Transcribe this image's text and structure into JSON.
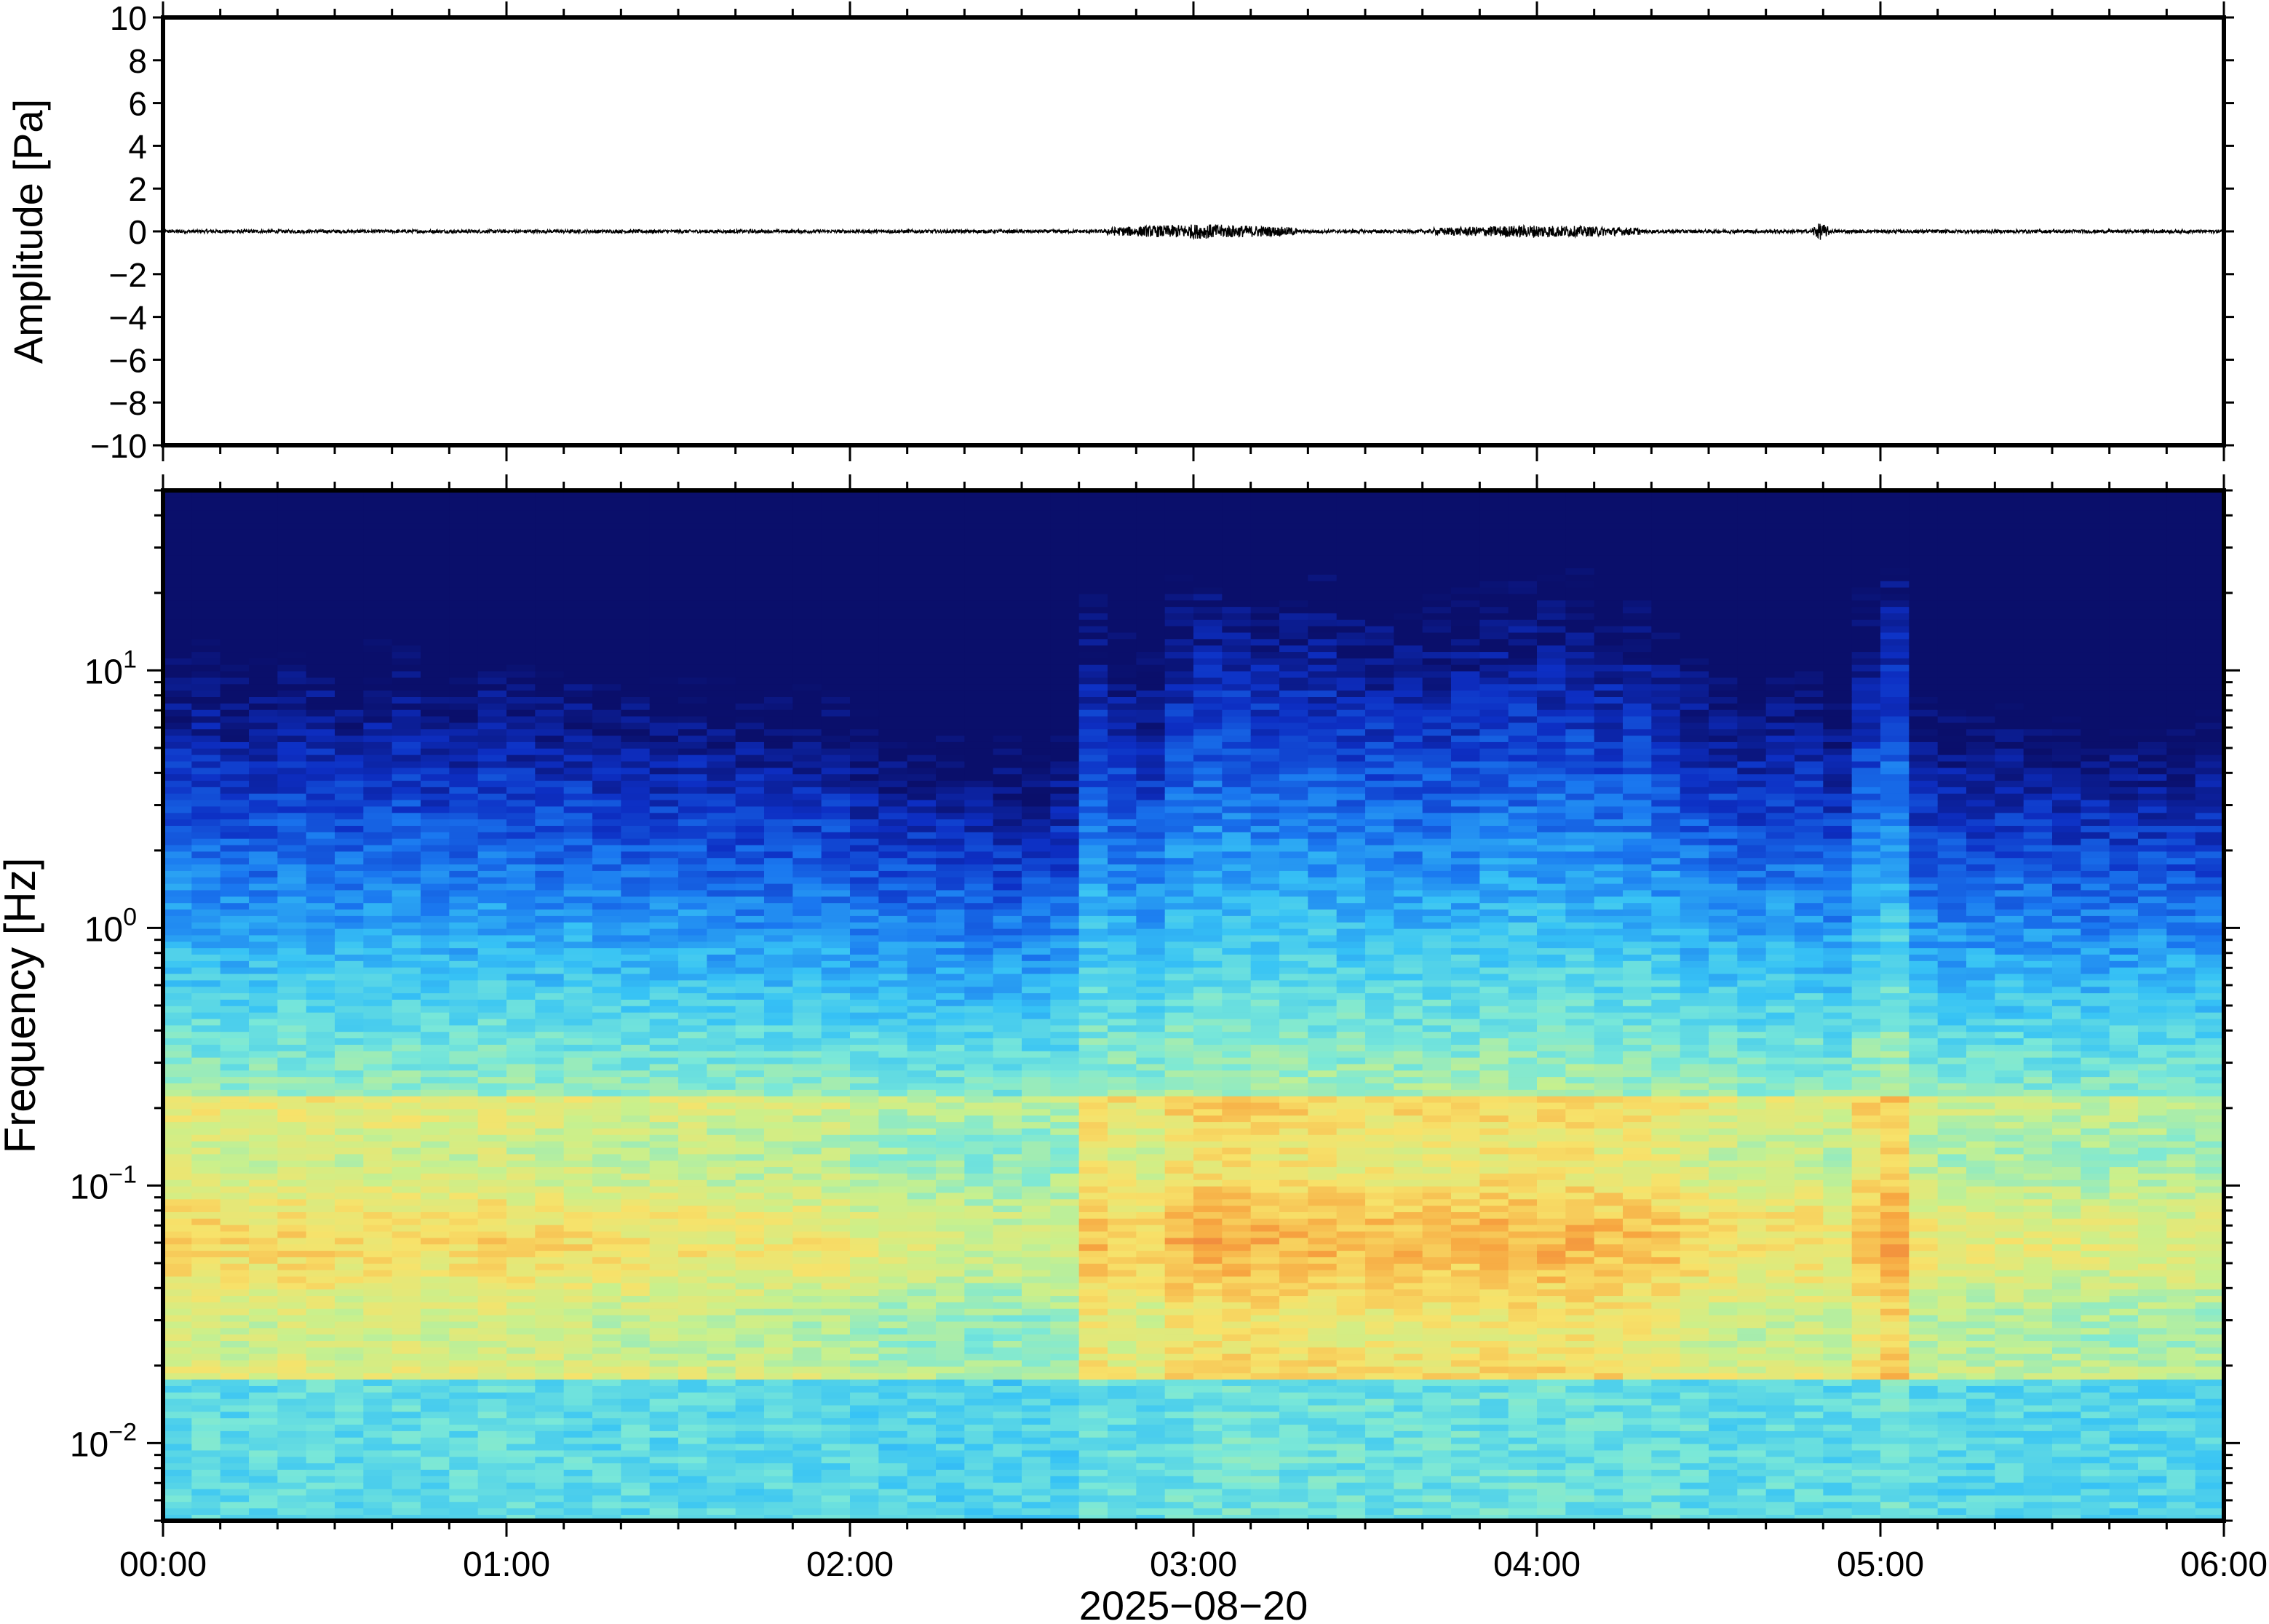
{
  "chart_data": [
    {
      "type": "line",
      "panel": "waveform",
      "ylabel": "Amplitude [Pa]",
      "ylim": [
        -10,
        10
      ],
      "yticks": [
        10,
        8,
        6,
        4,
        2,
        0,
        -2,
        -4,
        -6,
        -8,
        -10
      ],
      "ytick_labels": [
        "10",
        "8",
        "6",
        "4",
        "2",
        "0",
        "−2",
        "−4",
        "−6",
        "−8",
        "−10"
      ],
      "xlim_hours": [
        0,
        6
      ],
      "series_color": "#000000",
      "noise_bursts": [
        {
          "start_hour": 2.75,
          "end_hour": 3.3,
          "peak_amplitude": 0.35
        },
        {
          "start_hour": 3.7,
          "end_hour": 4.3,
          "peak_amplitude": 0.3
        },
        {
          "start_hour": 4.8,
          "end_hour": 4.85,
          "peak_amplitude": 0.4
        }
      ],
      "baseline_amplitude": 0.08
    },
    {
      "type": "heatmap",
      "panel": "spectrogram",
      "ylabel": "Frequency [Hz]",
      "yscale": "log",
      "ylim_hz": [
        0.005,
        50
      ],
      "ytick_labels": [
        {
          "base": "10",
          "exp": "1",
          "value": 10
        },
        {
          "base": "10",
          "exp": "0",
          "value": 1
        },
        {
          "base": "10",
          "exp": "−1",
          "value": 0.1
        },
        {
          "base": "10",
          "exp": "−2",
          "value": 0.01
        }
      ],
      "colormap": "jet-like (blue low, yellow/orange high)",
      "colormap_stops": [
        "#0a0f6b",
        "#0d2fc4",
        "#1a78f0",
        "#37c3f5",
        "#7ae8d8",
        "#c9f08c",
        "#f7e26a",
        "#f7a640",
        "#e8603a"
      ],
      "time_columns": 72,
      "intensity_by_time": [
        0.55,
        0.55,
        0.5,
        0.5,
        0.55,
        0.55,
        0.5,
        0.55,
        0.55,
        0.5,
        0.5,
        0.55,
        0.5,
        0.5,
        0.5,
        0.45,
        0.45,
        0.45,
        0.45,
        0.4,
        0.4,
        0.4,
        0.4,
        0.4,
        0.3,
        0.25,
        0.25,
        0.25,
        0.2,
        0.2,
        0.2,
        0.25,
        0.7,
        0.6,
        0.55,
        0.75,
        0.8,
        0.8,
        0.75,
        0.75,
        0.75,
        0.7,
        0.7,
        0.7,
        0.7,
        0.7,
        0.75,
        0.75,
        0.75,
        0.75,
        0.7,
        0.7,
        0.65,
        0.55,
        0.5,
        0.45,
        0.5,
        0.5,
        0.4,
        0.7,
        0.85,
        0.4,
        0.35,
        0.35,
        0.35,
        0.35,
        0.3,
        0.3,
        0.3,
        0.3,
        0.3,
        0.3
      ]
    }
  ],
  "x_axis": {
    "tick_labels": [
      "00:00",
      "01:00",
      "02:00",
      "03:00",
      "04:00",
      "05:00",
      "06:00"
    ],
    "date_label": "2025−08−20"
  }
}
